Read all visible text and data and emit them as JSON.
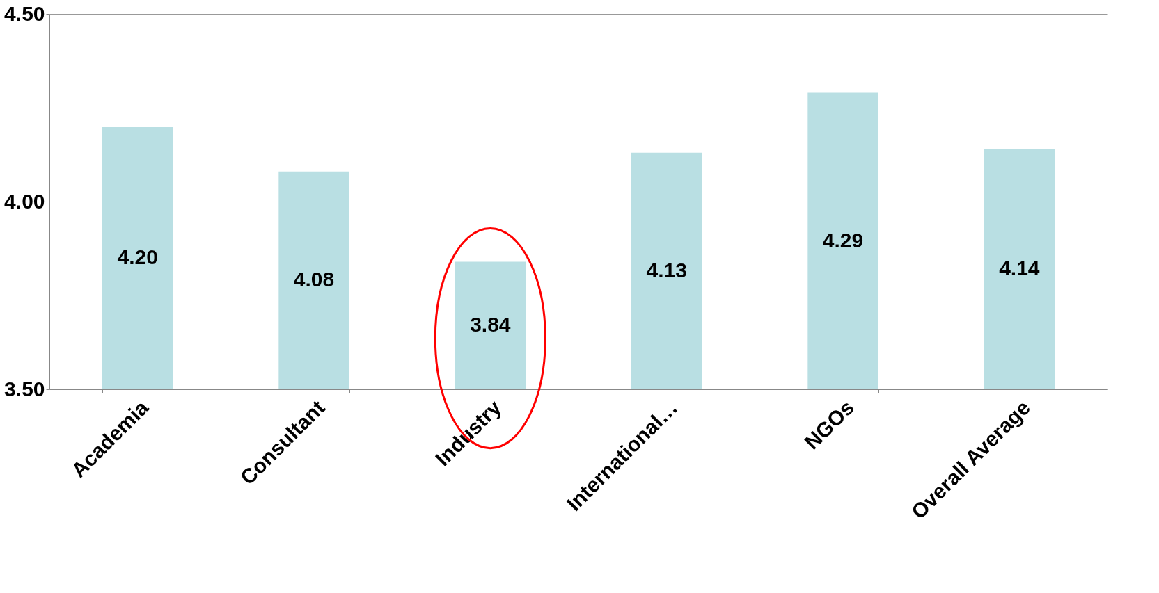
{
  "chart_data": {
    "type": "bar",
    "categories": [
      "Academia",
      "Consultant",
      "Industry",
      "International…",
      "NGOs",
      "Overall Average"
    ],
    "values": [
      4.2,
      4.08,
      3.84,
      4.13,
      4.29,
      4.14
    ],
    "color": "#b9dfe3",
    "ylim": [
      3.5,
      4.5
    ],
    "yticks": [
      {
        "value": 3.5,
        "label": "3.50"
      },
      {
        "value": 4.0,
        "label": "4.00"
      },
      {
        "value": 4.5,
        "label": "4.50"
      }
    ],
    "grid": "y",
    "value_labels": [
      "4.20",
      "4.08",
      "3.84",
      "4.13",
      "4.29",
      "4.14"
    ]
  }
}
